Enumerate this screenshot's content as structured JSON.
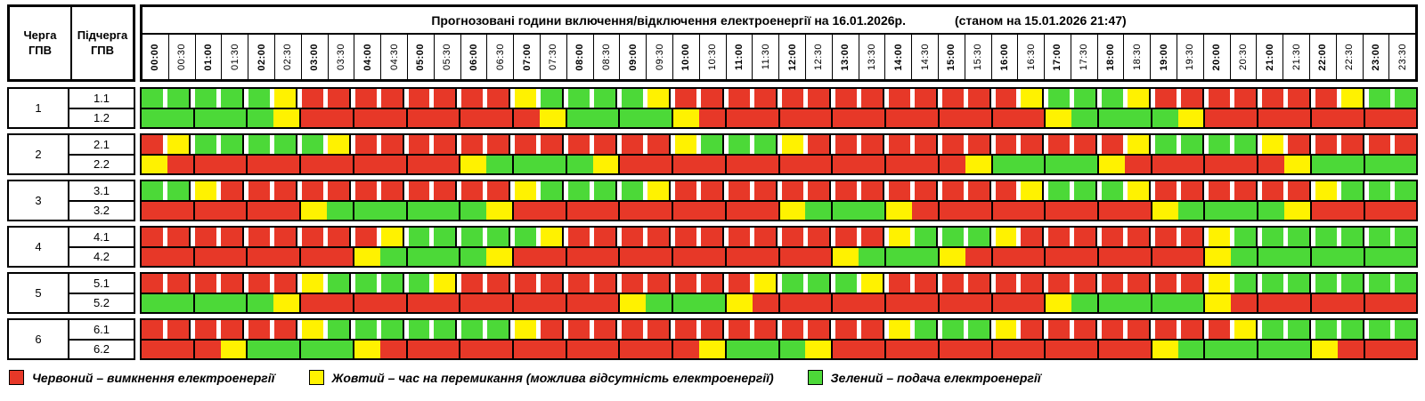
{
  "header": {
    "queue_col": "Черга\nГПВ",
    "subqueue_col": "Підчерга\nГПВ",
    "title": "Прогнозовані години включення/відключення електроенергії на 16.01.2026р.",
    "status": "(станом на 15.01.2026 21:47)"
  },
  "colors": {
    "R": "#e73828",
    "Y": "#fff200",
    "G": "#4cd938"
  },
  "times": [
    "00:00",
    "00:30",
    "01:00",
    "01:30",
    "02:00",
    "02:30",
    "03:00",
    "03:30",
    "04:00",
    "04:30",
    "05:00",
    "05:30",
    "06:00",
    "06:30",
    "07:00",
    "07:30",
    "08:00",
    "08:30",
    "09:00",
    "09:30",
    "10:00",
    "10:30",
    "11:00",
    "11:30",
    "12:00",
    "12:30",
    "13:00",
    "13:30",
    "14:00",
    "14:30",
    "15:00",
    "15:30",
    "16:00",
    "16:30",
    "17:00",
    "17:30",
    "18:00",
    "18:30",
    "19:00",
    "19:30",
    "20:00",
    "20:30",
    "21:00",
    "21:30",
    "22:00",
    "22:30",
    "23:00",
    "23:30"
  ],
  "groups": [
    {
      "queue": "1",
      "rows": [
        {
          "label": "1.1",
          "cells": "GGGGGYRRRRRRRRYGGGGYRRRRRRRRRRRRRYGGGYRRRRRRRYGG"
        },
        {
          "label": "1.2",
          "cells": "GGGGGYRRRRRRRRRYGGGGYRRRRRRRRRRRRRYGGGGYRRRRRRRR"
        }
      ]
    },
    {
      "queue": "2",
      "rows": [
        {
          "label": "2.1",
          "cells": "RYGGGGGYRRRRRRRRRRRRYGGGYRRRRRRRRRRRRYGGGGYRRRRR"
        },
        {
          "label": "2.2",
          "cells": "YRRRRRRRRRRRYGGGGYRRRRRRRRRRRRRYGGGGYRRRRRRYGGGG"
        }
      ]
    },
    {
      "queue": "3",
      "rows": [
        {
          "label": "3.1",
          "cells": "GGYRRRRRRRRRRRYGGGGYRRRRRRRRRRRRRYGGGYRRRRRRYGGG"
        },
        {
          "label": "3.2",
          "cells": "RRRRRRYGGGGGGYRRRRRRRRRRYGGGYRRRRRRRRRYGGGGYRRRR"
        }
      ]
    },
    {
      "queue": "4",
      "rows": [
        {
          "label": "4.1",
          "cells": "RRRRRRRRRYGGGGGYRRRRRRRRRRRRYGGGYRRRRRRRYGGGGGGG"
        },
        {
          "label": "4.2",
          "cells": "RRRRRRRRYGGGGYRRRRRRRRRRRRYGGGYRRRRRRRRRYGGGGGGG"
        }
      ]
    },
    {
      "queue": "5",
      "rows": [
        {
          "label": "5.1",
          "cells": "RRRRRRYGGGGYRRRRRRRRRRRYGGGYRRRRRRRRRRRRYGGGGGGG"
        },
        {
          "label": "5.2",
          "cells": "GGGGGYRRRRRRRRRRRRYGGGYRRRRRRRRRRRYGGGGGYRRRRRRR"
        }
      ]
    },
    {
      "queue": "6",
      "rows": [
        {
          "label": "6.1",
          "cells": "RRRRRRYGGGGGGGYRRRRRRRRRRRRRYGGGYRRRRRRRRYGGGGGG"
        },
        {
          "label": "6.2",
          "cells": "RRRYGGGGYRRRRRRRRRRRRYGGGYRRRRRRRRRRRRYGGGGGYRRR"
        }
      ]
    }
  ],
  "legend": [
    {
      "key": "R",
      "label": "Червоний – вимкнення електроенергії"
    },
    {
      "key": "Y",
      "label": "Жовтий – час на перемикання (можлива відсутність електроенергії)"
    },
    {
      "key": "G",
      "label": "Зелений – подача електроенергії"
    }
  ]
}
